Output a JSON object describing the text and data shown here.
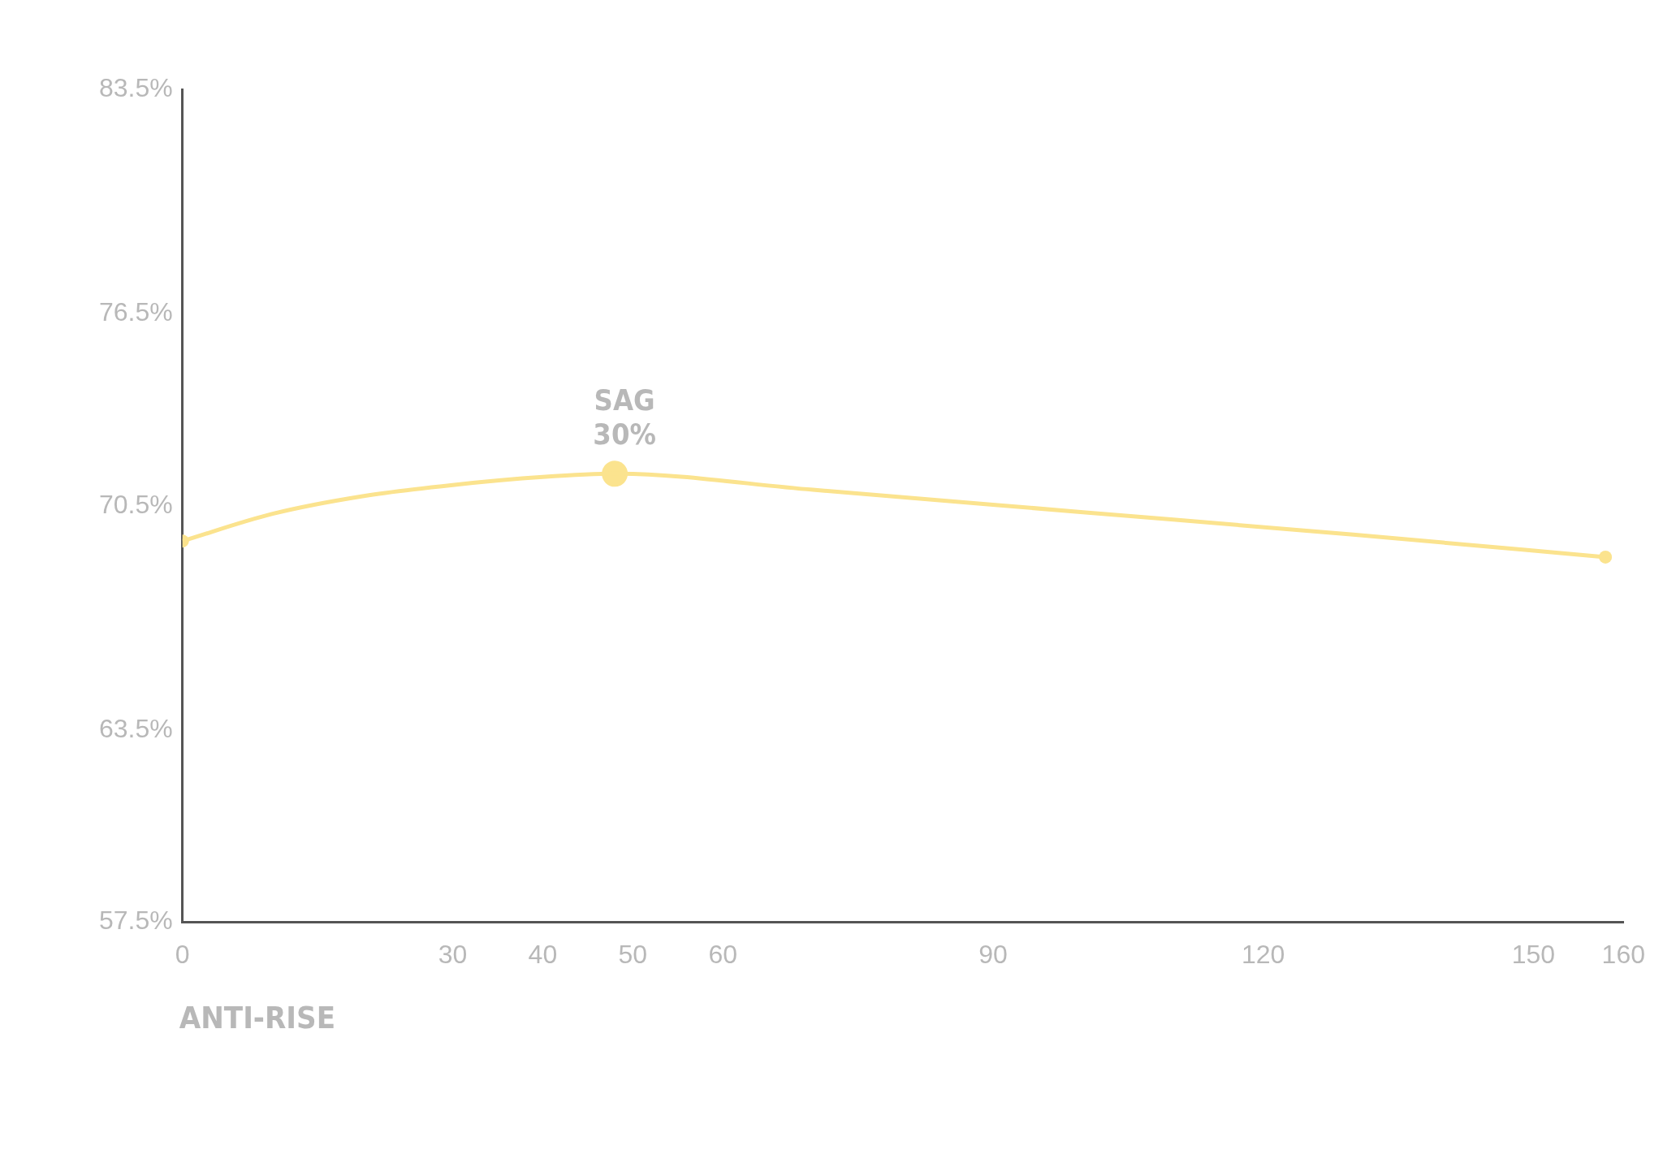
{
  "chart_data": {
    "type": "line",
    "xlabel": "ANTI-RISE",
    "x": [
      0,
      10,
      20,
      30,
      40,
      48,
      70,
      100,
      130,
      158
    ],
    "series": [
      {
        "color": "#fbe38e",
        "marker": "none",
        "values": [
          69.4,
          70.25,
          70.8,
          71.15,
          71.4,
          71.5,
          71.0,
          70.3,
          69.6,
          68.9
        ]
      },
      {
        "type": "bubble",
        "marker": "circle",
        "color": "#fbe38e",
        "x": [
          0,
          48,
          158
        ],
        "values": [
          69.4,
          71.5,
          68.9
        ],
        "sizes": [
          0.25,
          1,
          0.25
        ]
      }
    ],
    "xlim": [
      0,
      160
    ],
    "xticks": [
      0,
      30,
      40,
      50,
      60,
      90,
      120,
      150,
      160
    ],
    "ylim": [
      57.5,
      83.5
    ],
    "yticks": [
      {
        "value": 57.5,
        "label": "57.5%"
      },
      {
        "value": 63.5,
        "label": "63.5%"
      },
      {
        "value": 70.5,
        "label": "70.5%"
      },
      {
        "value": 76.5,
        "label": "76.5%"
      },
      {
        "value": 83.5,
        "label": "83.5%"
      }
    ],
    "annotations": [
      {
        "text": "SAG\n30%",
        "x": 48,
        "y": 71.5
      }
    ],
    "grid": false,
    "legend": false,
    "line_style": "solid"
  }
}
